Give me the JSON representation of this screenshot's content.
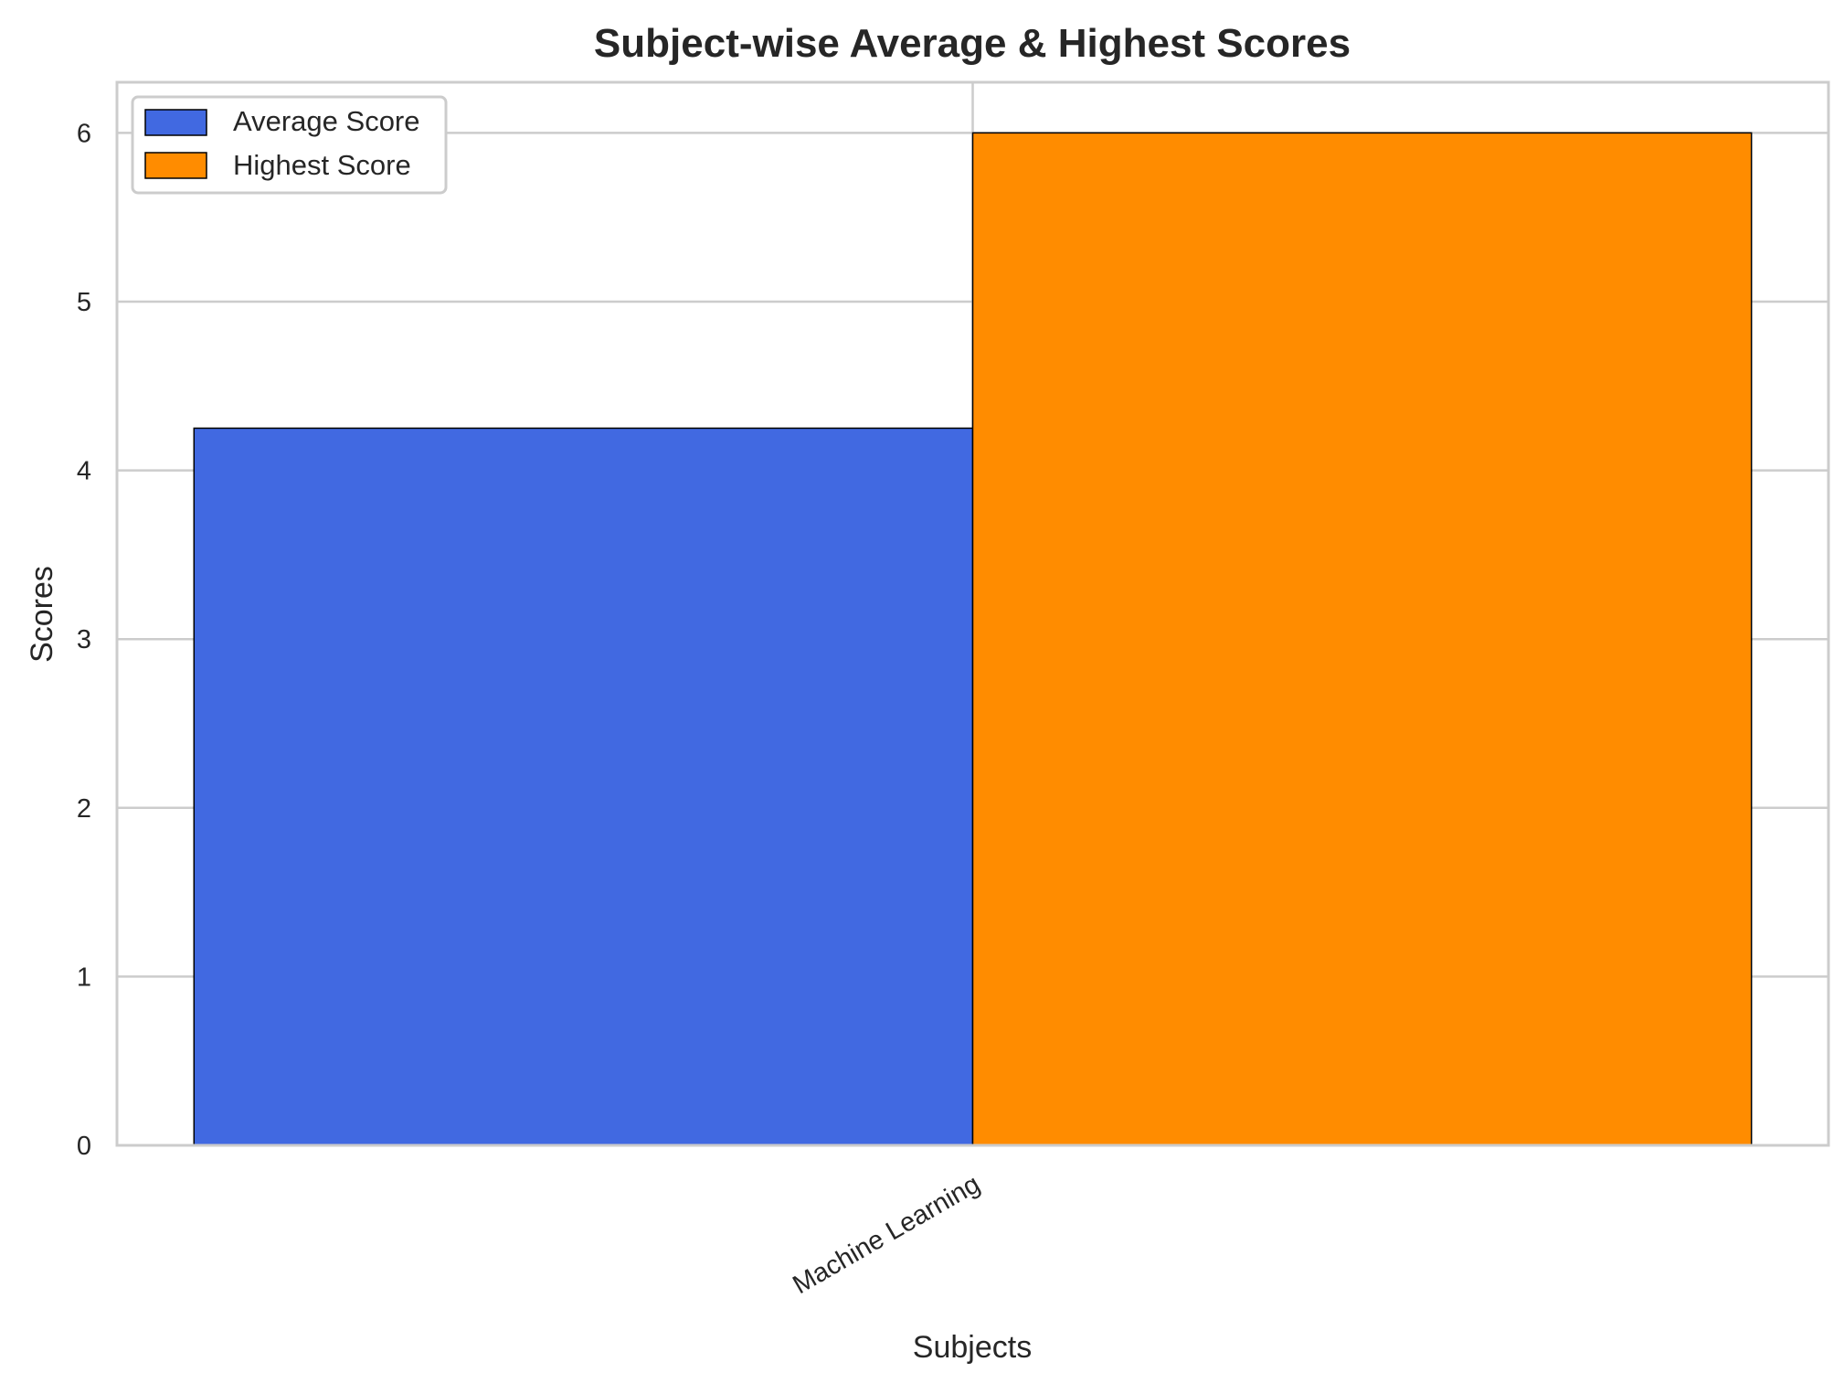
{
  "chart_data": {
    "type": "bar",
    "title": "Subject-wise Average & Highest Scores",
    "xlabel": "Subjects",
    "ylabel": "Scores",
    "categories": [
      "Machine Learning"
    ],
    "series": [
      {
        "name": "Average Score",
        "values": [
          4.25
        ],
        "color": "#4169E1"
      },
      {
        "name": "Highest Score",
        "values": [
          6
        ],
        "color": "#FF8C00"
      }
    ],
    "ylim": [
      0,
      6.3
    ],
    "yticks": [
      "0",
      "1",
      "2",
      "3",
      "4",
      "5",
      "6"
    ],
    "grid": true,
    "legend_position": "top-left"
  }
}
